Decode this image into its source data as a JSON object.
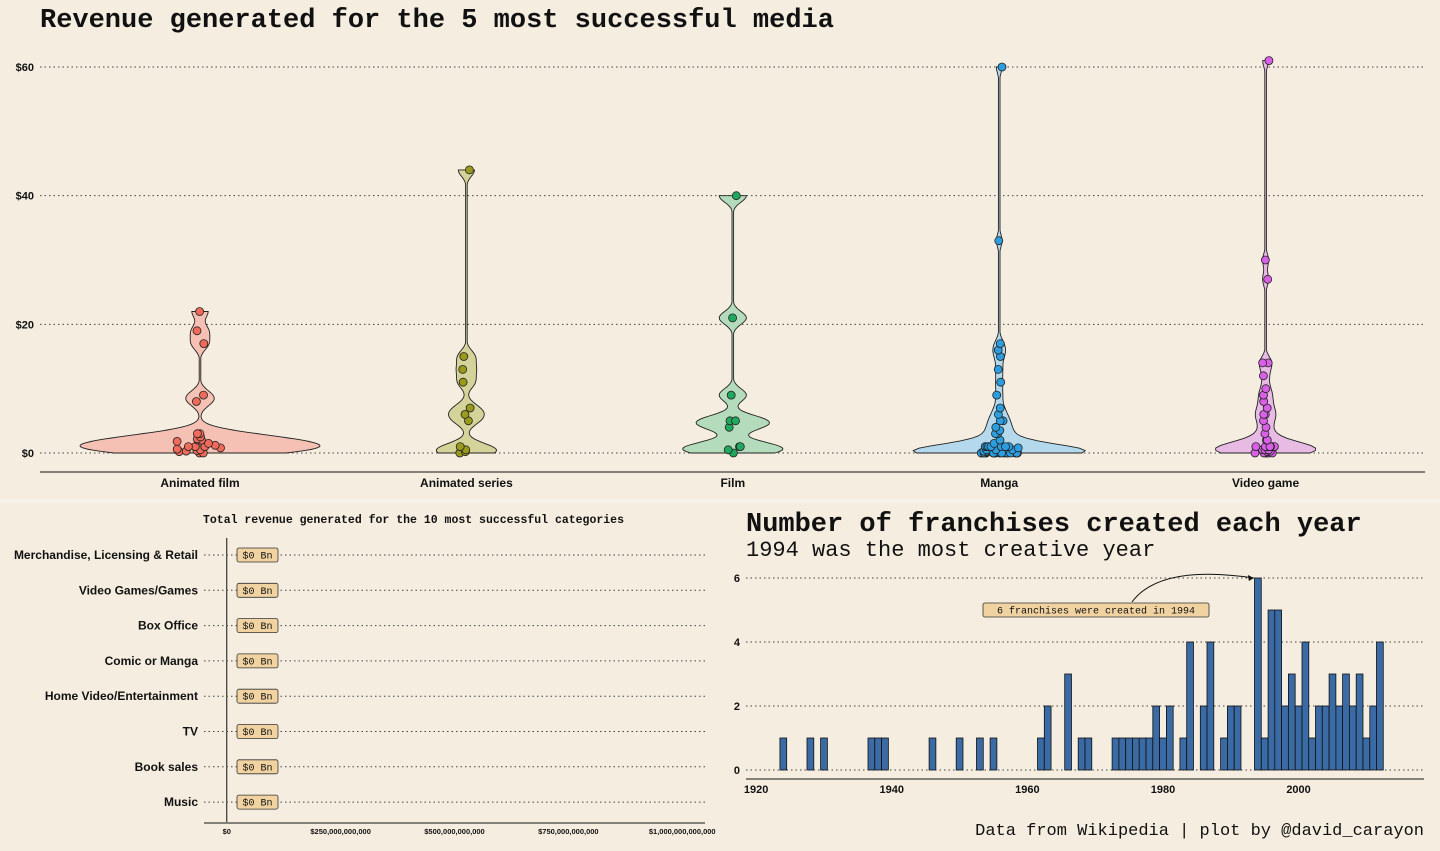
{
  "chart_data": [
    {
      "type": "violin",
      "title": "Revenue generated for the 5 most successful media",
      "xlabel": "",
      "ylabel": "",
      "ylim": [
        0,
        62
      ],
      "y_ticks": [
        "$0",
        "$20",
        "$40",
        "$60"
      ],
      "y_tick_values": [
        0,
        20,
        40,
        60
      ],
      "grid": true,
      "categories": [
        "Animated film",
        "Animated series",
        "Film",
        "Manga",
        "Video game"
      ],
      "colors": [
        "#ef6a5b",
        "#999a1c",
        "#20a85e",
        "#2c9ee0",
        "#d95fe6"
      ],
      "fill_colors": [
        "#f4c1b4",
        "#d4d49a",
        "#b4dcbc",
        "#b5d9ec",
        "#e7bbe4"
      ],
      "series": [
        {
          "name": "Animated film",
          "values": [
            0,
            0,
            0.2,
            0.3,
            0.4,
            0.5,
            0.6,
            0.8,
            1,
            1,
            1,
            1.2,
            1.5,
            1.8,
            2,
            2,
            2,
            2.2,
            2.5,
            3,
            3,
            8,
            9,
            17,
            19,
            22
          ]
        },
        {
          "name": "Animated series",
          "values": [
            0,
            0.2,
            0.5,
            1,
            5,
            6,
            7,
            11,
            13,
            15,
            44
          ]
        },
        {
          "name": "Film",
          "values": [
            0,
            0.5,
            1,
            1,
            4,
            5,
            5,
            9,
            21,
            40
          ]
        },
        {
          "name": "Manga",
          "values": [
            0,
            0,
            0,
            0,
            0,
            0,
            0,
            0,
            0,
            0,
            0,
            0,
            0,
            0,
            0,
            0,
            0,
            0,
            0,
            0.2,
            0.3,
            0.5,
            0.5,
            0.5,
            0.8,
            1,
            1,
            1,
            1,
            1,
            1,
            1,
            1.5,
            2,
            3,
            3,
            3.5,
            4,
            5,
            5,
            6,
            7,
            9,
            11,
            13,
            15,
            16,
            17,
            33,
            60
          ]
        },
        {
          "name": "Video game",
          "values": [
            0,
            0,
            0,
            0,
            0,
            0,
            0.2,
            0.3,
            0.5,
            0.5,
            0.5,
            1,
            1,
            1,
            1,
            1,
            1,
            1,
            2,
            2,
            3,
            4,
            5,
            6,
            6,
            7,
            8,
            9,
            10,
            12,
            14,
            14,
            27,
            30,
            61
          ]
        }
      ]
    },
    {
      "type": "bar",
      "orientation": "horizontal",
      "title": "Total revenue generated for the 10 most successful categories",
      "categories": [
        "Merchandise, Licensing & Retail",
        "Video Games/Games",
        "Box Office",
        "Comic or Manga",
        "Home Video/Entertainment",
        "TV",
        "Book sales",
        "Music"
      ],
      "values": [
        0,
        0,
        0,
        0,
        0,
        0,
        0,
        0
      ],
      "data_labels": [
        "$0 Bn",
        "$0 Bn",
        "$0 Bn",
        "$0 Bn",
        "$0 Bn",
        "$0 Bn",
        "$0 Bn",
        "$0 Bn"
      ],
      "x_ticks": [
        "$0",
        "$250,000,000,000",
        "$500,000,000,000",
        "$750,000,000,000",
        "$1,000,000,000,000"
      ],
      "x_tick_values": [
        0,
        250000000000,
        500000000000,
        750000000000,
        1000000000000
      ],
      "xlim": [
        -50000000000,
        1050000000000
      ],
      "label_fill": "#f1d3a2"
    },
    {
      "type": "histogram",
      "title": "Number of franchises created each year",
      "subtitle": "1994 was the most creative year",
      "x_ticks": [
        "1920",
        "1940",
        "1960",
        "1980",
        "2000"
      ],
      "x_tick_values": [
        1920,
        1940,
        1960,
        1980,
        2000
      ],
      "y_ticks": [
        "0",
        "2",
        "4",
        "6"
      ],
      "y_tick_values": [
        0,
        2,
        4,
        6
      ],
      "xlim": [
        1918.5,
        2018.5
      ],
      "ylim": [
        0,
        6.3
      ],
      "bar_color": "#3a6ba5",
      "x": [
        1924,
        1928,
        1930,
        1937,
        1938,
        1939,
        1946,
        1950,
        1953,
        1955,
        1962,
        1963,
        1966,
        1968,
        1969,
        1973,
        1974,
        1975,
        1976,
        1977,
        1978,
        1979,
        1980,
        1981,
        1983,
        1984,
        1986,
        1987,
        1989,
        1990,
        1991,
        1994,
        1995,
        1996,
        1997,
        1998,
        1999,
        2000,
        2001,
        2002,
        2003,
        2004,
        2005,
        2006,
        2007,
        2008,
        2009,
        2010,
        2011,
        2012
      ],
      "values": [
        1,
        1,
        1,
        1,
        1,
        1,
        1,
        1,
        1,
        1,
        1,
        2,
        3,
        1,
        1,
        1,
        1,
        1,
        1,
        1,
        1,
        2,
        1,
        2,
        1,
        4,
        2,
        4,
        1,
        2,
        2,
        6,
        1,
        5,
        5,
        2,
        3,
        2,
        4,
        1,
        2,
        2,
        3,
        2,
        3,
        2,
        3,
        1,
        2,
        4
      ],
      "annotation": "6 franchises were created in 1994",
      "annotation_x": 1994,
      "annotation_y": 6,
      "caption": "Data from Wikipedia | plot by @david_carayon"
    }
  ]
}
